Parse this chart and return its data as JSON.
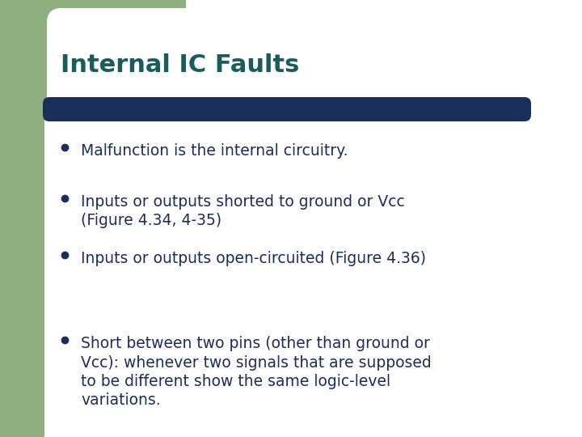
{
  "title": "Internal IC Faults",
  "title_color": "#1a5c5c",
  "title_fontsize": 22,
  "bar_color": "#1a2e5a",
  "background_color": "#ffffff",
  "left_panel_color": "#8faf80",
  "bullet_color": "#1a2e5a",
  "text_color": "#1a2e5a",
  "text_fontsize": 13.5,
  "bullets": [
    "Malfunction is the internal circuitry.",
    "Inputs or outputs shorted to ground or Vcc\n(Figure 4.34, 4-35)",
    "Inputs or outputs open-circuited (Figure 4.36)",
    "Short between two pins (other than ground or\nVcc): whenever two signals that are supposed\nto be different show the same logic-level\nvariations."
  ]
}
